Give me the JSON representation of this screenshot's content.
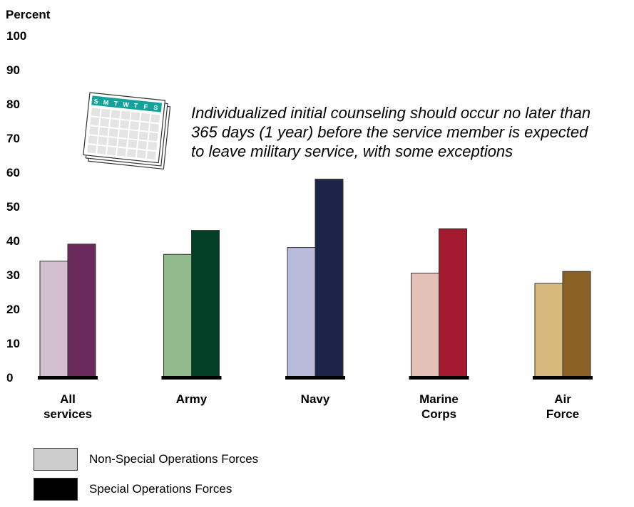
{
  "chart_data": {
    "type": "bar",
    "ylabel": "Percent",
    "ylim": [
      0,
      100
    ],
    "yticks": [
      "0",
      "10",
      "20",
      "30",
      "40",
      "50",
      "60",
      "70",
      "80",
      "90",
      "100"
    ],
    "categories": [
      [
        "All",
        "services"
      ],
      [
        "Army"
      ],
      [
        "Navy"
      ],
      [
        "Marine",
        "Corps"
      ],
      [
        "Air",
        "Force"
      ]
    ],
    "series": [
      {
        "name": "Non-Special Operations Forces",
        "values": [
          34,
          36,
          38,
          30.5,
          27.5
        ]
      },
      {
        "name": "Special Operations Forces",
        "values": [
          39,
          43,
          58,
          43.5,
          31
        ]
      }
    ],
    "colors": {
      "non_sof": [
        "#d2bfcf",
        "#8fbb8d",
        "#b8bbd9",
        "#e4c1b8",
        "#d6b97c"
      ],
      "sof": [
        "#6b2a5c",
        "#023f24",
        "#1b2547",
        "#a31a2e",
        "#8a6024"
      ],
      "legend_non_sof": "#cccccc",
      "legend_sof": "#000000"
    },
    "annotation": {
      "lines": [
        "Individualized initial counseling should occur no later than",
        "365 days (1 year) before the service member is expected",
        "to leave military service, with some exceptions"
      ],
      "icon": "calendar-icon",
      "calendar_days": [
        "S",
        "M",
        "T",
        "W",
        "T",
        "F",
        "S"
      ],
      "calendar_color": "#14a39a"
    },
    "grid": false,
    "legend_position": "bottom-left"
  }
}
